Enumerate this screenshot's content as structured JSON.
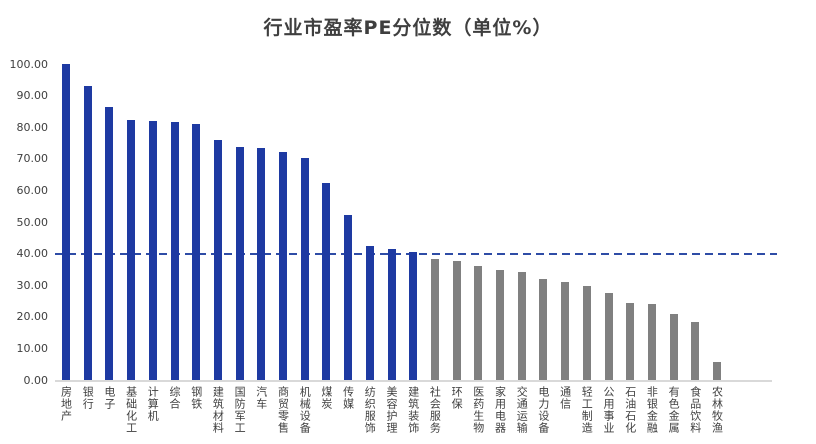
{
  "title": "行业市盈率PE分位数（单位%）",
  "colors": {
    "bar_blue": "#1e3aa2",
    "bar_gray": "#808080",
    "reference_line": "#2e4ca6",
    "axis_text": "#404040",
    "title_text": "#3f3f3f",
    "axis_line": "#d9d9d9"
  },
  "chart_data": {
    "type": "bar",
    "title": "行业市盈率PE分位数（单位%）",
    "xlabel": "",
    "ylabel": "",
    "ylim": [
      0,
      100
    ],
    "ytick_step": 10,
    "ytick_labels": [
      "0.00",
      "10.00",
      "20.00",
      "30.00",
      "40.00",
      "50.00",
      "60.00",
      "70.00",
      "80.00",
      "90.00",
      "100.00"
    ],
    "grid": false,
    "legend": "none",
    "reference_line": {
      "value": 40,
      "style": "dashed",
      "color": "#2e4ca6"
    },
    "categories": [
      "房地产",
      "银行",
      "电子",
      "基础化工",
      "计算机",
      "综合",
      "钢铁",
      "建筑材料",
      "国防军工",
      "汽车",
      "商贸零售",
      "机械设备",
      "煤炭",
      "传媒",
      "纺织服饰",
      "美容护理",
      "建筑装饰",
      "社会服务",
      "环保",
      "医药生物",
      "家用电器",
      "交通运输",
      "电力设备",
      "通信",
      "轻工制造",
      "公用事业",
      "石油石化",
      "非银金融",
      "有色金属",
      "食品饮料",
      "农林牧渔"
    ],
    "values": [
      99.9,
      93.0,
      86.5,
      82.3,
      82.0,
      81.6,
      81.0,
      76.0,
      73.8,
      73.4,
      72.2,
      70.1,
      62.3,
      52.1,
      42.5,
      41.5,
      40.4,
      38.3,
      37.8,
      36.0,
      34.9,
      34.1,
      32.0,
      30.9,
      29.8,
      27.4,
      24.5,
      24.2,
      21.0,
      18.2,
      5.8
    ],
    "bar_colors": [
      "blue",
      "blue",
      "blue",
      "blue",
      "blue",
      "blue",
      "blue",
      "blue",
      "blue",
      "blue",
      "blue",
      "blue",
      "blue",
      "blue",
      "blue",
      "blue",
      "blue",
      "gray",
      "gray",
      "gray",
      "gray",
      "gray",
      "gray",
      "gray",
      "gray",
      "gray",
      "gray",
      "gray",
      "gray",
      "gray",
      "gray"
    ]
  }
}
